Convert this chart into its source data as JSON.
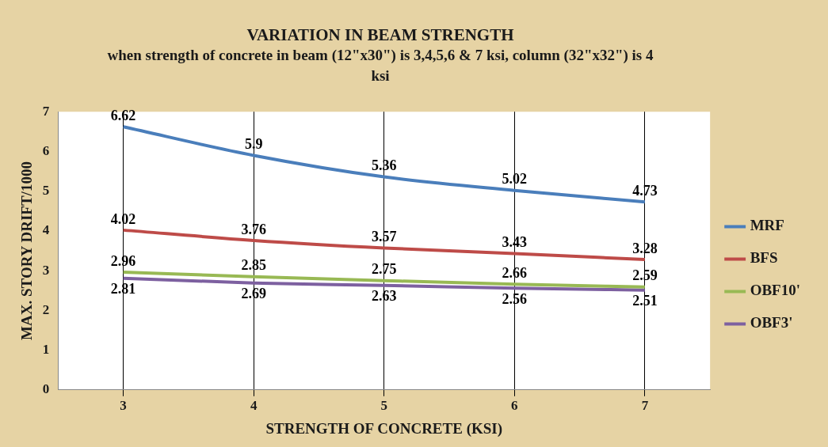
{
  "chart_data": {
    "type": "line",
    "title": "VARIATION IN BEAM STRENGTH",
    "subtitle": "when strength of concrete in beam (12\"x30\") is 3,4,5,6 & 7 ksi, column (32\"x32\") is 4 ksi",
    "xlabel": "STRENGTH OF CONCRETE (KSI)",
    "ylabel": "MAX. STORY DRIFT/1000",
    "categories": [
      "3",
      "4",
      "5",
      "6",
      "7"
    ],
    "series": [
      {
        "name": "MRF",
        "color": "#4a7ebb",
        "values": [
          6.62,
          5.9,
          5.36,
          5.02,
          4.73
        ]
      },
      {
        "name": "BFS",
        "color": "#be4b48",
        "values": [
          4.02,
          3.76,
          3.57,
          3.43,
          3.28
        ]
      },
      {
        "name": "OBF10'",
        "color": "#98b954",
        "values": [
          2.96,
          2.85,
          2.75,
          2.66,
          2.59
        ]
      },
      {
        "name": "OBF3'",
        "color": "#7d60a0",
        "values": [
          2.81,
          2.69,
          2.63,
          2.56,
          2.51
        ]
      }
    ],
    "ylim": [
      0,
      7
    ],
    "yticks": [
      0,
      1,
      2,
      3,
      4,
      5,
      6,
      7
    ],
    "grid": "x",
    "legend": "right",
    "marker": "none",
    "data_labels": true
  }
}
